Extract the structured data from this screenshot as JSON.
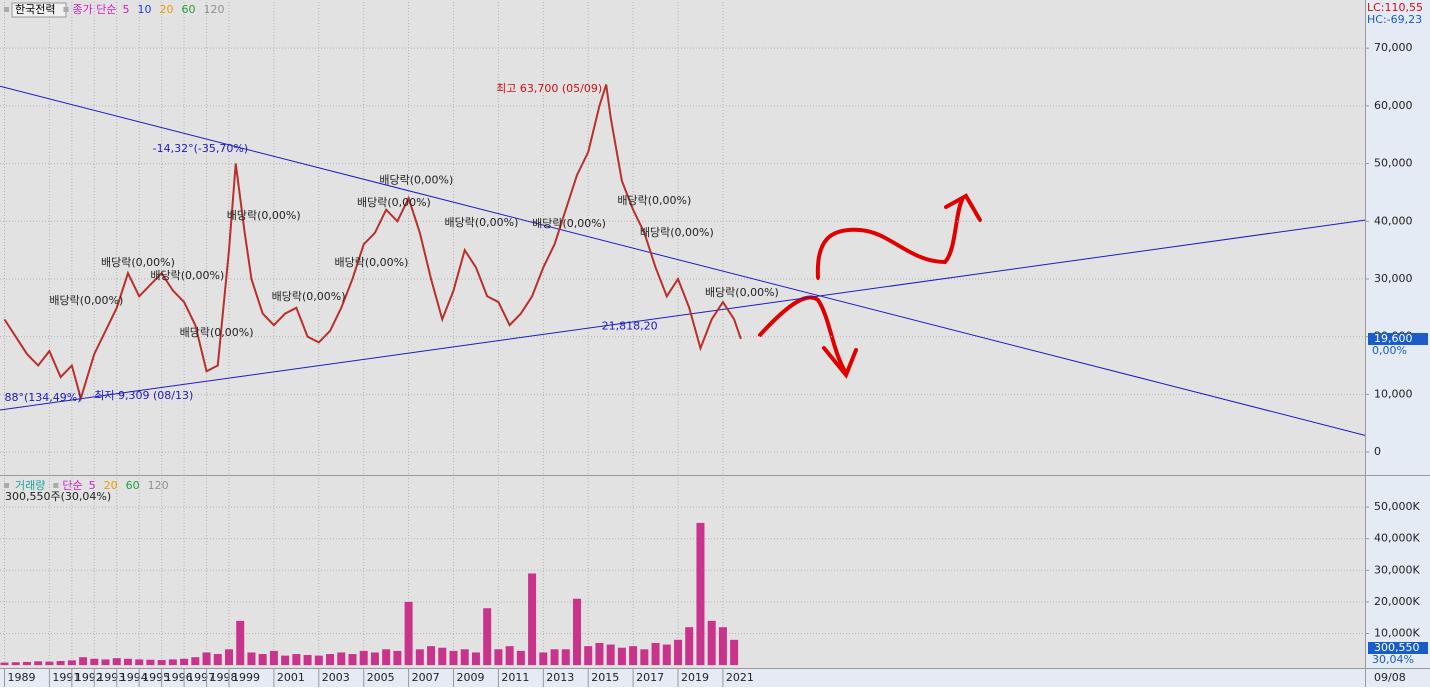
{
  "chart_data": [
    {
      "type": "line",
      "title": "한국전력",
      "subtitle": "종가 단순",
      "legend": [
        {
          "name": "5",
          "color": "#d020c0"
        },
        {
          "name": "10",
          "color": "#2040d0"
        },
        {
          "name": "20",
          "color": "#e0a000"
        },
        {
          "name": "60",
          "color": "#20a040"
        },
        {
          "name": "120",
          "color": "#909090"
        }
      ],
      "lc": "LC:110,55",
      "hc": "HC:-69,23",
      "last_value": {
        "value": 19600,
        "label": "19,600"
      },
      "last_change": "0,00%",
      "x": [
        1989,
        1989.5,
        1990,
        1990.5,
        1991,
        1991.5,
        1992,
        1992.4,
        1993,
        1993.5,
        1994,
        1994.5,
        1995,
        1995.5,
        1996,
        1996.5,
        1997,
        1997.5,
        1998,
        1998.5,
        1999,
        1999.3,
        1999.7,
        2000,
        2000.5,
        2001,
        2001.5,
        2002,
        2002.5,
        2003,
        2003.5,
        2004,
        2004.5,
        2005,
        2005.5,
        2006,
        2006.5,
        2007,
        2007.5,
        2008,
        2008.5,
        2009,
        2009.5,
        2010,
        2010.5,
        2011,
        2011.5,
        2012,
        2012.5,
        2013,
        2013.5,
        2014,
        2014.5,
        2015,
        2015.5,
        2015.8,
        2016,
        2016.5,
        2017,
        2017.5,
        2018,
        2018.5,
        2019,
        2019.5,
        2020,
        2020.5,
        2021,
        2021.5,
        2021.8
      ],
      "series": [
        {
          "name": "종가",
          "color": "#b8302c",
          "values": [
            23000,
            20000,
            17000,
            15000,
            17500,
            13000,
            15000,
            9309,
            17000,
            21000,
            25000,
            31000,
            27000,
            29000,
            31000,
            28000,
            26000,
            22000,
            14000,
            15000,
            35000,
            50000,
            38000,
            30000,
            24000,
            22000,
            24000,
            25000,
            20000,
            19000,
            21000,
            25000,
            30000,
            36000,
            38000,
            42000,
            40000,
            44000,
            38000,
            30000,
            23000,
            28000,
            35000,
            32000,
            27000,
            26000,
            22000,
            24000,
            27000,
            32000,
            36000,
            42000,
            48000,
            52000,
            60000,
            63700,
            58000,
            47000,
            42000,
            38000,
            32000,
            27000,
            30000,
            25000,
            18000,
            23000,
            26000,
            23000,
            19600
          ]
        }
      ],
      "xlim": [
        1988.8,
        2049.6
      ],
      "xticks": [
        1989,
        1991,
        1992,
        1993,
        1994,
        1995,
        1996,
        1997,
        1998,
        1999,
        2001,
        2003,
        2005,
        2007,
        2009,
        2011,
        2013,
        2015,
        2017,
        2019,
        2021
      ],
      "x_end_label": "09/08",
      "ylim": [
        -3800,
        78000
      ],
      "yticks": [
        0,
        {
          "value": 10000,
          "label": "10,000"
        },
        {
          "value": 20000,
          "label": "20,000"
        },
        {
          "value": 30000,
          "label": "30,000"
        },
        {
          "value": 40000,
          "label": "40,000"
        },
        {
          "value": 50000,
          "label": "50,000"
        },
        {
          "value": 60000,
          "label": "60,000"
        },
        {
          "value": 70000,
          "label": "70,000"
        }
      ],
      "grid": true,
      "trendlines": [
        {
          "color": "#1c1cc0",
          "x": [
            1988.8,
            2049.6
          ],
          "y": [
            63400,
            2900
          ]
        },
        {
          "color": "#1c1cc0",
          "x": [
            1988.8,
            2049.6
          ],
          "y": [
            7300,
            40200
          ]
        }
      ],
      "annotations": [
        {
          "text": "최고 63,700 (05/09)",
          "x": 2010.9,
          "y": 62900,
          "color": "#d01010"
        },
        {
          "text": "-14,32°(-35,70%)",
          "x": 1995.6,
          "y": 52500,
          "color": "#1c1cc0"
        },
        {
          "text": "88°(134,49%)",
          "x": 1989.0,
          "y": 9400,
          "color": "#1c1cc0"
        },
        {
          "text": "최저 9,309 (08/13)",
          "x": 1993.0,
          "y": 9700,
          "color": "#1c1cc0"
        },
        {
          "text": "21,818,20",
          "x": 2015.6,
          "y": 21800,
          "color": "#1c1cc0"
        },
        {
          "text": "배당락(0,00%)",
          "x": 1998.9,
          "y": 40900,
          "color": "#222222"
        },
        {
          "text": "배당락(0,00%)",
          "x": 2005.7,
          "y": 47100,
          "color": "#222222"
        },
        {
          "text": "배당락(0,00%)",
          "x": 2004.7,
          "y": 43200,
          "color": "#222222"
        },
        {
          "text": "배당락(0,00%)",
          "x": 2008.6,
          "y": 39700,
          "color": "#222222"
        },
        {
          "text": "배당락(0,00%)",
          "x": 2012.5,
          "y": 39500,
          "color": "#222222"
        },
        {
          "text": "배당락(0,00%)",
          "x": 2016.3,
          "y": 43500,
          "color": "#222222"
        },
        {
          "text": "배당락(0,00%)",
          "x": 2017.3,
          "y": 38000,
          "color": "#222222"
        },
        {
          "text": "배당락(0,00%)",
          "x": 2020.2,
          "y": 27600,
          "color": "#222222"
        },
        {
          "text": "배당락(0,00%)",
          "x": 2003.7,
          "y": 32800,
          "color": "#222222"
        },
        {
          "text": "배당락(0,00%)",
          "x": 1993.3,
          "y": 32800,
          "color": "#222222"
        },
        {
          "text": "배당락(0,00%)",
          "x": 1991.0,
          "y": 26200,
          "color": "#222222"
        },
        {
          "text": "배당락(0,00%)",
          "x": 1996.8,
          "y": 20600,
          "color": "#222222"
        },
        {
          "text": "배당락(0,00%)",
          "x": 2000.9,
          "y": 26900,
          "color": "#222222"
        },
        {
          "text": "배당락(0,00%)",
          "x": 1995.5,
          "y": 30500,
          "color": "#222222"
        }
      ]
    },
    {
      "type": "bar",
      "title": "거래량",
      "subtitle": "단순",
      "legend": [
        {
          "name": "5",
          "color": "#d020c0"
        },
        {
          "name": "20",
          "color": "#e0a000"
        },
        {
          "name": "60",
          "color": "#20a040"
        },
        {
          "name": "120",
          "color": "#909090"
        }
      ],
      "info": "300,550주(30,04%)",
      "last_value": {
        "value": 300.55,
        "label": "300,550"
      },
      "last_change": "30,04%",
      "x": [
        1989,
        1989.5,
        1990,
        1990.5,
        1991,
        1991.5,
        1992,
        1992.5,
        1993,
        1993.5,
        1994,
        1994.5,
        1995,
        1995.5,
        1996,
        1996.5,
        1997,
        1997.5,
        1998,
        1998.5,
        1999,
        1999.5,
        2000,
        2000.5,
        2001,
        2001.5,
        2002,
        2002.5,
        2003,
        2003.5,
        2004,
        2004.5,
        2005,
        2005.5,
        2006,
        2006.5,
        2007,
        2007.5,
        2008,
        2008.5,
        2009,
        2009.5,
        2010,
        2010.5,
        2011,
        2011.5,
        2012,
        2012.5,
        2013,
        2013.5,
        2014,
        2014.5,
        2015,
        2015.5,
        2016,
        2016.5,
        2017,
        2017.5,
        2018,
        2018.5,
        2019,
        2019.5,
        2020,
        2020.5,
        2021,
        2021.5
      ],
      "series": [
        {
          "name": "거래량",
          "color": "#c8348c",
          "values": [
            800,
            900,
            1000,
            1200,
            1100,
            1300,
            1500,
            2500,
            2000,
            1800,
            2200,
            2000,
            1800,
            1700,
            1600,
            1800,
            2000,
            2500,
            4000,
            3500,
            5000,
            14000,
            4000,
            3500,
            4500,
            3000,
            3500,
            3200,
            3000,
            3500,
            4000,
            3500,
            4500,
            4000,
            5000,
            4500,
            20000,
            5000,
            6000,
            5500,
            4500,
            5000,
            4000,
            18000,
            5000,
            6000,
            4500,
            29000,
            4000,
            5000,
            5000,
            21000,
            6000,
            7000,
            6500,
            5500,
            6000,
            5000,
            7000,
            6500,
            8000,
            12000,
            45000,
            14000,
            12000,
            8000
          ]
        }
      ],
      "xlim": [
        1988.8,
        2049.6
      ],
      "ylim": [
        -600,
        59200
      ],
      "yticks": [
        {
          "value": 10000,
          "label": "10,000K"
        },
        {
          "value": 20000,
          "label": "20,000K"
        },
        {
          "value": 30000,
          "label": "30,000K"
        },
        {
          "value": 40000,
          "label": "40,000K"
        },
        {
          "value": 50000,
          "label": "50,000K"
        }
      ],
      "grid": true
    }
  ]
}
